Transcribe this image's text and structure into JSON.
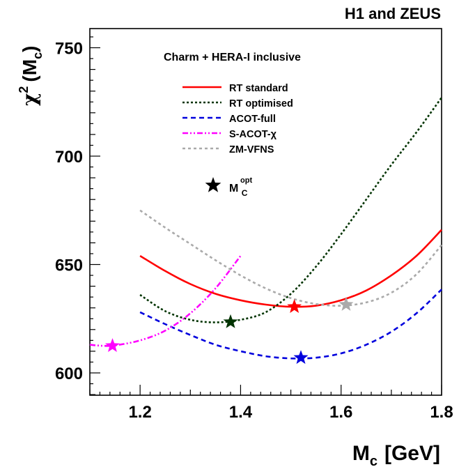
{
  "chart_data": {
    "type": "line",
    "title": "H1 and ZEUS",
    "subtitle": "Charm + HERA-I inclusive",
    "xlabel_main": "M",
    "xlabel_sub": "c",
    "xlabel_unit": "[GeV]",
    "ylabel_chi": "χ",
    "ylabel_sup": "2",
    "ylabel_arg": "(M",
    "ylabel_sub": "c",
    "ylabel_close": ")",
    "xlim": [
      1.1,
      1.8
    ],
    "ylim": [
      590,
      760
    ],
    "x_ticks": [
      "1.2",
      "1.4",
      "1.6",
      "1.8"
    ],
    "y_ticks": [
      "600",
      "650",
      "700",
      "750"
    ],
    "grid": false,
    "legend_position": "top-left",
    "legend_marker_main": "M",
    "legend_marker_sub": "C",
    "legend_marker_sup": "opt",
    "series": [
      {
        "name": "RT standard",
        "color": "#ff0000",
        "dash": "solid",
        "points": [
          [
            1.2,
            654
          ],
          [
            1.25,
            647
          ],
          [
            1.3,
            641
          ],
          [
            1.35,
            636.5
          ],
          [
            1.4,
            633.5
          ],
          [
            1.45,
            631.5
          ],
          [
            1.5,
            630.5
          ],
          [
            1.55,
            631
          ],
          [
            1.6,
            633.5
          ],
          [
            1.65,
            638
          ],
          [
            1.7,
            645
          ],
          [
            1.75,
            654
          ],
          [
            1.8,
            666
          ]
        ],
        "min": [
          1.507,
          630.5
        ]
      },
      {
        "name": "RT optimised",
        "color": "#003300",
        "dash": "dotted",
        "points": [
          [
            1.2,
            636
          ],
          [
            1.25,
            628.5
          ],
          [
            1.3,
            624.5
          ],
          [
            1.35,
            623.3
          ],
          [
            1.4,
            624.5
          ],
          [
            1.45,
            628
          ],
          [
            1.5,
            636.5
          ],
          [
            1.55,
            649
          ],
          [
            1.6,
            664
          ],
          [
            1.65,
            680
          ],
          [
            1.7,
            696
          ],
          [
            1.75,
            711
          ],
          [
            1.8,
            727
          ]
        ],
        "min": [
          1.38,
          623.5
        ]
      },
      {
        "name": "ACOT-full",
        "color": "#0000dd",
        "dash": "dashed",
        "points": [
          [
            1.2,
            628
          ],
          [
            1.25,
            622.5
          ],
          [
            1.3,
            617.5
          ],
          [
            1.35,
            613
          ],
          [
            1.4,
            610
          ],
          [
            1.45,
            607.7
          ],
          [
            1.5,
            606.7
          ],
          [
            1.55,
            607
          ],
          [
            1.6,
            609
          ],
          [
            1.65,
            613
          ],
          [
            1.7,
            619
          ],
          [
            1.75,
            627.5
          ],
          [
            1.8,
            638.5
          ]
        ],
        "min": [
          1.52,
          607
        ]
      },
      {
        "name": "S-ACOT-χ",
        "color": "#ff00ff",
        "dash": "dashdot",
        "points": [
          [
            1.1,
            613
          ],
          [
            1.125,
            612.5
          ],
          [
            1.15,
            612.7
          ],
          [
            1.2,
            615
          ],
          [
            1.25,
            619.5
          ],
          [
            1.3,
            627.5
          ],
          [
            1.35,
            639
          ],
          [
            1.4,
            654
          ]
        ],
        "min": [
          1.145,
          612.5
        ]
      },
      {
        "name": "ZM-VFNS",
        "color": "#aaaaaa",
        "dash": "dotted-wide",
        "points": [
          [
            1.2,
            675
          ],
          [
            1.25,
            667
          ],
          [
            1.3,
            659.5
          ],
          [
            1.35,
            652
          ],
          [
            1.4,
            645
          ],
          [
            1.45,
            639
          ],
          [
            1.5,
            634.5
          ],
          [
            1.55,
            631.8
          ],
          [
            1.6,
            631
          ],
          [
            1.65,
            632.5
          ],
          [
            1.7,
            637
          ],
          [
            1.75,
            645.5
          ],
          [
            1.8,
            659
          ]
        ],
        "min": [
          1.61,
          631.5
        ]
      }
    ]
  }
}
